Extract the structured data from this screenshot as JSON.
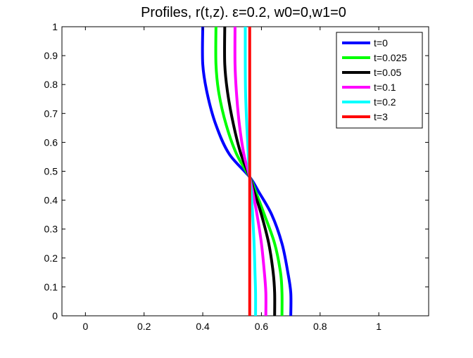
{
  "chart_data": {
    "type": "line",
    "title": "Profiles, r(t,z).   ε=0.2, w0=0,w1=0",
    "xlabel": "",
    "ylabel": "",
    "xlim": [
      -0.08,
      1.17
    ],
    "ylim": [
      0,
      1
    ],
    "xticks": [
      "0",
      "0.2",
      "0.4",
      "0.6",
      "0.8",
      "1"
    ],
    "yticks": [
      "0",
      "0.1",
      "0.2",
      "0.3",
      "0.4",
      "0.5",
      "0.6",
      "0.7",
      "0.8",
      "0.9",
      "1"
    ],
    "grid": false,
    "legend_position": "top-right",
    "series": [
      {
        "name": "t=0",
        "color": "#0000ff",
        "x": [
          0.7,
          0.7,
          0.69,
          0.67,
          0.635,
          0.59,
          0.56,
          0.49,
          0.445,
          0.415,
          0.4,
          0.4
        ],
        "y": [
          0,
          0.08,
          0.15,
          0.25,
          0.35,
          0.43,
          0.48,
          0.56,
          0.66,
          0.77,
          0.87,
          1
        ]
      },
      {
        "name": "t=0.025",
        "color": "#00ff00",
        "x": [
          0.67,
          0.67,
          0.665,
          0.645,
          0.61,
          0.58,
          0.56,
          0.515,
          0.48,
          0.455,
          0.445,
          0.445
        ],
        "y": [
          0,
          0.08,
          0.15,
          0.25,
          0.35,
          0.43,
          0.48,
          0.56,
          0.66,
          0.77,
          0.87,
          1
        ]
      },
      {
        "name": "t=0.05",
        "color": "#000000",
        "x": [
          0.645,
          0.645,
          0.64,
          0.625,
          0.6,
          0.575,
          0.56,
          0.53,
          0.505,
          0.485,
          0.475,
          0.475
        ],
        "y": [
          0,
          0.08,
          0.15,
          0.25,
          0.35,
          0.43,
          0.48,
          0.56,
          0.66,
          0.77,
          0.87,
          1
        ]
      },
      {
        "name": "t=0.1",
        "color": "#ff00ff",
        "x": [
          0.615,
          0.615,
          0.61,
          0.6,
          0.585,
          0.57,
          0.56,
          0.54,
          0.525,
          0.515,
          0.51,
          0.51
        ],
        "y": [
          0,
          0.08,
          0.15,
          0.25,
          0.35,
          0.43,
          0.48,
          0.56,
          0.66,
          0.77,
          0.87,
          1
        ]
      },
      {
        "name": "t=0.2",
        "color": "#00ffff",
        "x": [
          0.58,
          0.58,
          0.578,
          0.575,
          0.57,
          0.565,
          0.56,
          0.555,
          0.55,
          0.546,
          0.545,
          0.545
        ],
        "y": [
          0,
          0.08,
          0.15,
          0.25,
          0.35,
          0.43,
          0.48,
          0.56,
          0.66,
          0.77,
          0.87,
          1
        ]
      },
      {
        "name": "t=3",
        "color": "#ff0000",
        "x": [
          0.56,
          0.56
        ],
        "y": [
          0,
          1
        ]
      }
    ]
  }
}
